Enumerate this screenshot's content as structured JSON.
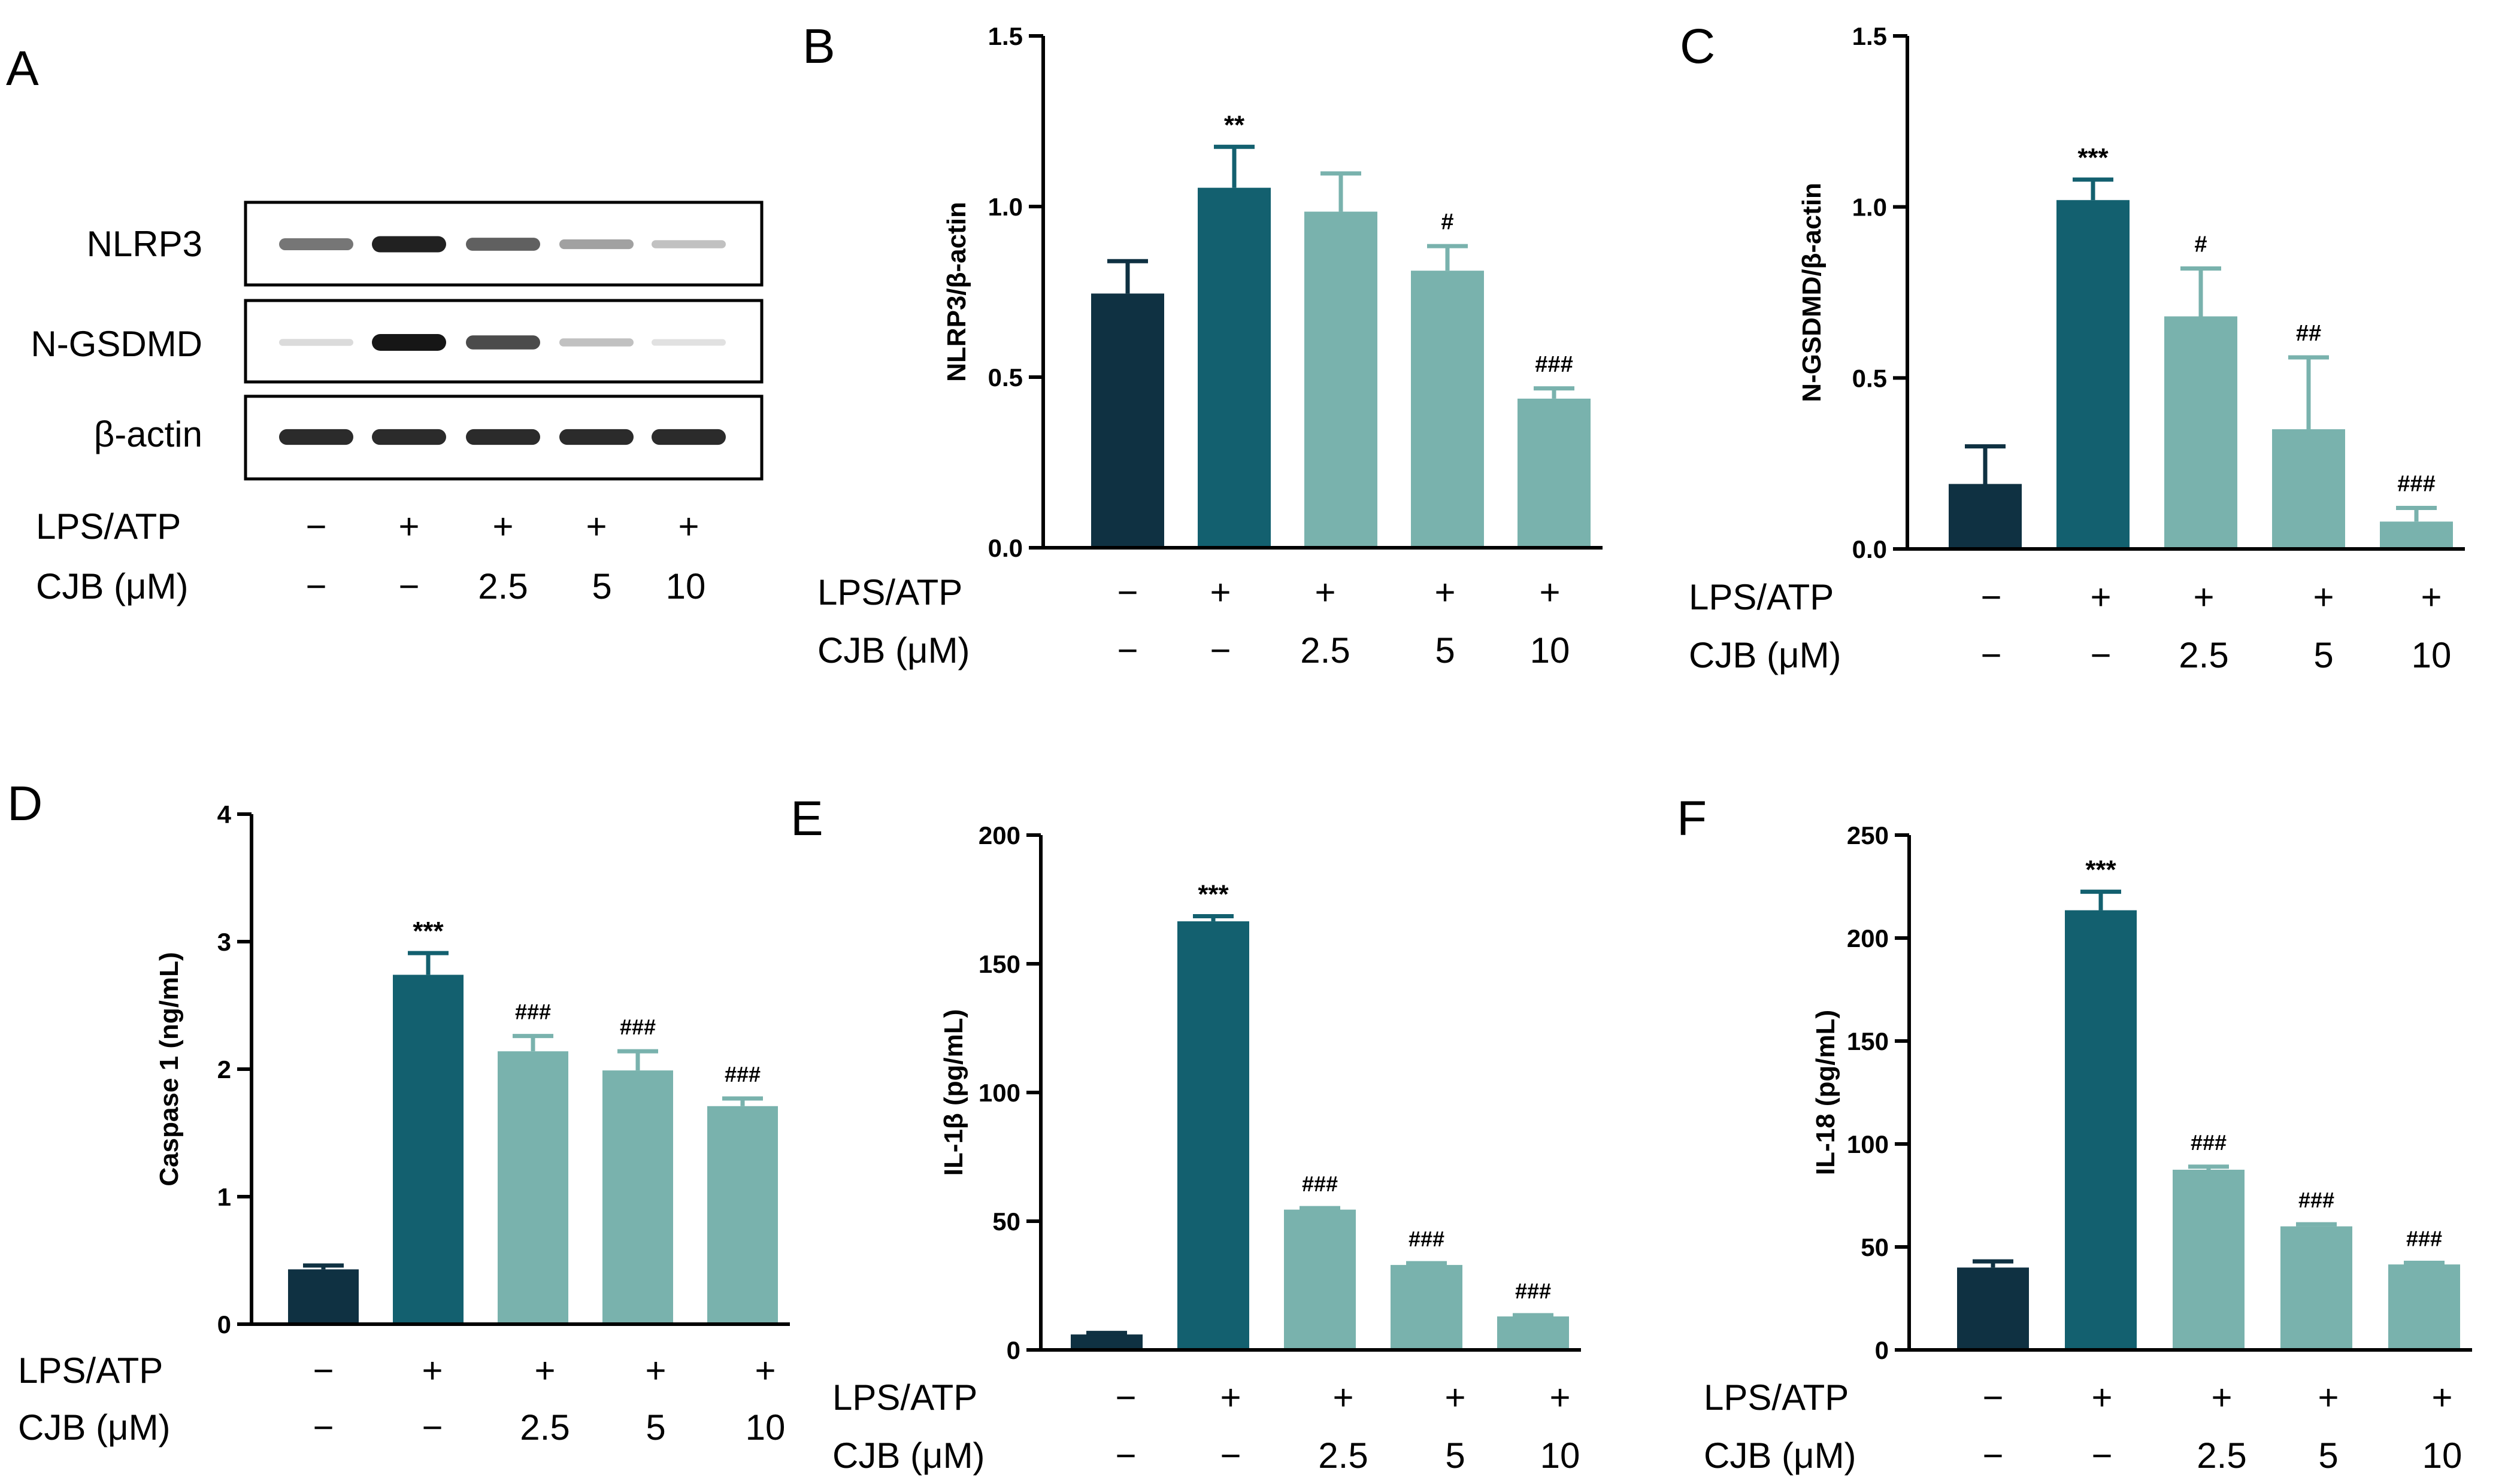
{
  "colors": {
    "control": "#0f3142",
    "model": "#13606f",
    "treatment": "#79b2ad",
    "axis": "#000000"
  },
  "panel_A": {
    "letter": "A",
    "blots": [
      {
        "label": "NLRP3",
        "intensities": [
          0.55,
          0.95,
          0.65,
          0.35,
          0.2
        ]
      },
      {
        "label": "N-GSDMD",
        "intensities": [
          0.08,
          1.0,
          0.75,
          0.2,
          0.05
        ]
      },
      {
        "label": "β-actin",
        "intensities": [
          0.9,
          0.9,
          0.9,
          0.9,
          0.9
        ]
      }
    ],
    "conditions": [
      {
        "label": "LPS/ATP",
        "values": [
          "−",
          "+",
          "+",
          "+",
          "+"
        ]
      },
      {
        "label": "CJB (μM)",
        "values": [
          "−",
          "−",
          "2.5",
          "5",
          "10"
        ]
      }
    ]
  },
  "chart_data": [
    {
      "panel": "B",
      "type": "bar",
      "ylabel": "NLRP3/β-actin",
      "ylim": [
        0,
        1.5
      ],
      "yticks": [
        0.0,
        0.5,
        1.0,
        1.5
      ],
      "ytick_labels": [
        "0.0",
        "0.5",
        "1.0",
        "1.5"
      ],
      "values": [
        0.745,
        1.055,
        0.985,
        0.812,
        0.437
      ],
      "errors": [
        0.095,
        0.12,
        0.112,
        0.072,
        0.03
      ],
      "colors": [
        "control",
        "model",
        "treatment",
        "treatment",
        "treatment"
      ],
      "significance": [
        "",
        "**",
        "",
        "#",
        "###"
      ],
      "conditions": [
        {
          "label": "LPS/ATP",
          "values": [
            "−",
            "+",
            "+",
            "+",
            "+"
          ]
        },
        {
          "label": "CJB (μM)",
          "values": [
            "−",
            "−",
            "2.5",
            "5",
            "10"
          ]
        }
      ]
    },
    {
      "panel": "C",
      "type": "bar",
      "ylabel": "N-GSDMD/β-actin",
      "ylim": [
        0,
        1.5
      ],
      "yticks": [
        0.0,
        0.5,
        1.0,
        1.5
      ],
      "ytick_labels": [
        "0.0",
        "0.5",
        "1.0",
        "1.5"
      ],
      "values": [
        0.19,
        1.02,
        0.68,
        0.35,
        0.08
      ],
      "errors": [
        0.11,
        0.06,
        0.14,
        0.21,
        0.04
      ],
      "colors": [
        "control",
        "model",
        "treatment",
        "treatment",
        "treatment"
      ],
      "significance": [
        "",
        "***",
        "#",
        "##",
        "###"
      ],
      "conditions": [
        {
          "label": "LPS/ATP",
          "values": [
            "−",
            "+",
            "+",
            "+",
            "+"
          ]
        },
        {
          "label": "CJB (μM)",
          "values": [
            "−",
            "−",
            "2.5",
            "5",
            "10"
          ]
        }
      ]
    },
    {
      "panel": "D",
      "type": "bar",
      "ylabel": "Caspase 1 (ng/mL)",
      "ylim": [
        0,
        4
      ],
      "yticks": [
        0,
        1,
        2,
        3,
        4
      ],
      "ytick_labels": [
        "0",
        "1",
        "2",
        "3",
        "4"
      ],
      "values": [
        0.43,
        2.74,
        2.14,
        1.99,
        1.71
      ],
      "errors": [
        0.03,
        0.17,
        0.12,
        0.15,
        0.06
      ],
      "colors": [
        "control",
        "model",
        "treatment",
        "treatment",
        "treatment"
      ],
      "significance": [
        "",
        "***",
        "###",
        "###",
        "###"
      ],
      "conditions": [
        {
          "label": "LPS/ATP",
          "values": [
            "−",
            "+",
            "+",
            "+",
            "+"
          ]
        },
        {
          "label": "CJB (μM)",
          "values": [
            "−",
            "−",
            "2.5",
            "5",
            "10"
          ]
        }
      ]
    },
    {
      "panel": "E",
      "type": "bar",
      "ylabel": "IL-1β (pg/mL)",
      "ylim": [
        0,
        200
      ],
      "yticks": [
        0,
        50,
        100,
        150,
        200
      ],
      "ytick_labels": [
        "0",
        "50",
        "100",
        "150",
        "200"
      ],
      "values": [
        6,
        166.5,
        54.5,
        33,
        13
      ],
      "errors": [
        0.6,
        2,
        0.6,
        0.7,
        0.5
      ],
      "colors": [
        "control",
        "model",
        "treatment",
        "treatment",
        "treatment"
      ],
      "significance": [
        "",
        "***",
        "###",
        "###",
        "###"
      ],
      "conditions": [
        {
          "label": "LPS/ATP",
          "values": [
            "−",
            "+",
            "+",
            "+",
            "+"
          ]
        },
        {
          "label": "CJB (μM)",
          "values": [
            "−",
            "−",
            "2.5",
            "5",
            "10"
          ]
        }
      ]
    },
    {
      "panel": "F",
      "type": "bar",
      "ylabel": "IL-18 (pg/mL)",
      "ylim": [
        0,
        250
      ],
      "yticks": [
        0,
        50,
        100,
        150,
        200,
        250
      ],
      "ytick_labels": [
        "0",
        "50",
        "100",
        "150",
        "200",
        "250"
      ],
      "values": [
        40,
        213.5,
        87.5,
        60,
        41.5
      ],
      "errors": [
        3,
        9,
        1.5,
        1,
        0.8
      ],
      "colors": [
        "control",
        "model",
        "treatment",
        "treatment",
        "treatment"
      ],
      "significance": [
        "",
        "***",
        "###",
        "###",
        "###"
      ],
      "conditions": [
        {
          "label": "LPS/ATP",
          "values": [
            "−",
            "+",
            "+",
            "+",
            "+"
          ]
        },
        {
          "label": "CJB (μM)",
          "values": [
            "−",
            "−",
            "2.5",
            "5",
            "10"
          ]
        }
      ]
    }
  ]
}
